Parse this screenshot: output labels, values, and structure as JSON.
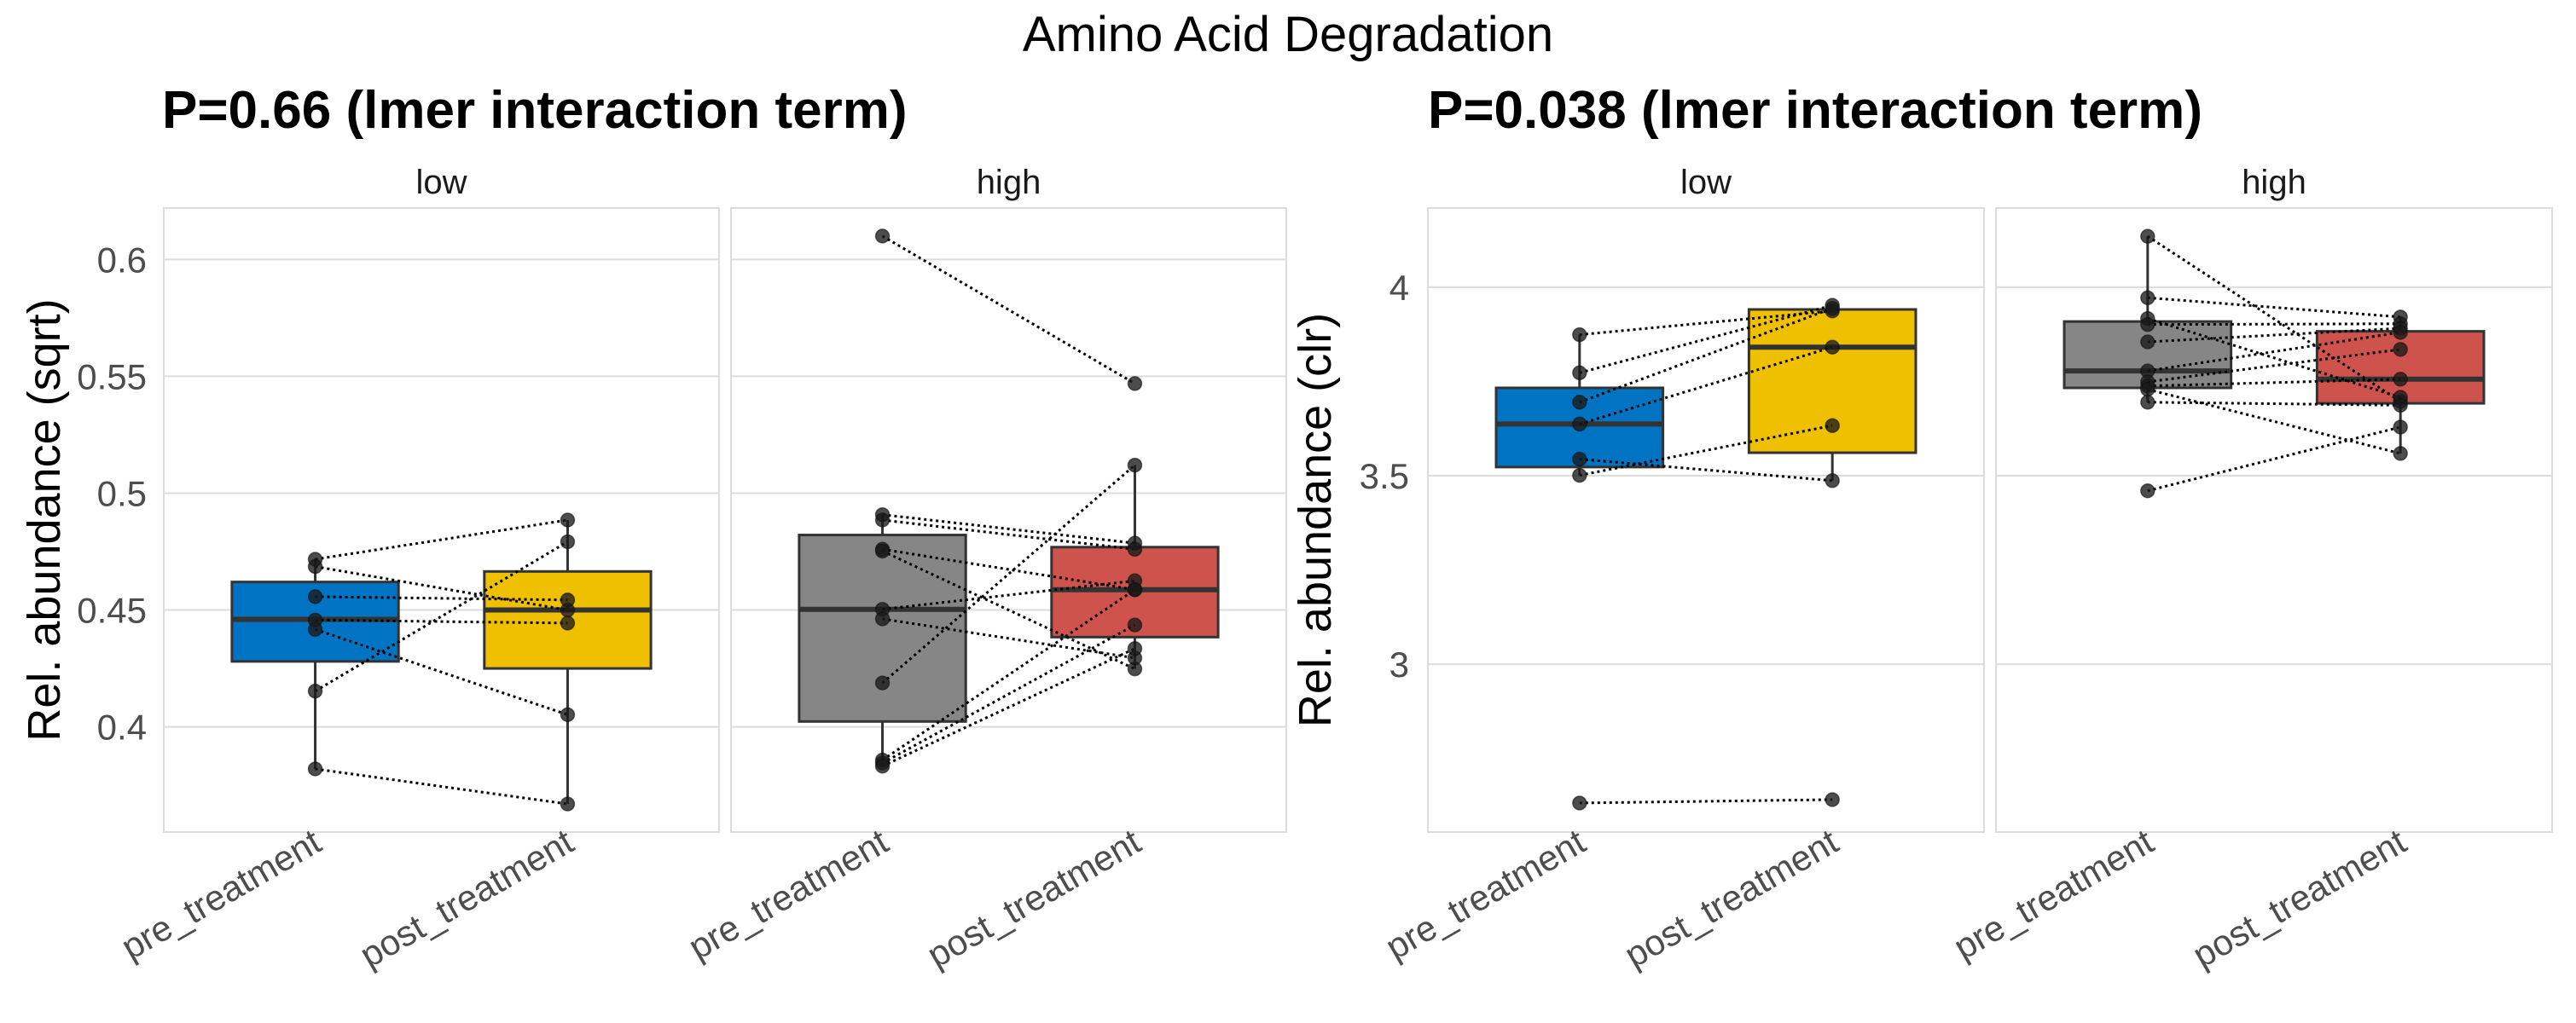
{
  "title": "Amino Acid Degradation",
  "chart_data": [
    {
      "type": "box",
      "subtitle": "P=0.66 (lmer interaction term)",
      "ylabel": "Rel. abundance (sqrt)",
      "ylim": [
        0.355,
        0.622
      ],
      "yticks": [
        0.4,
        0.45,
        0.5,
        0.55,
        0.6
      ],
      "ytick_labels": [
        "0.4",
        "0.45",
        "0.5",
        "0.55",
        "0.6"
      ],
      "grid": true,
      "categories": [
        "pre_treatment",
        "post_treatment"
      ],
      "facets": [
        {
          "label": "low",
          "colors": [
            "#0073C2",
            "#EFC000"
          ],
          "boxes": [
            {
              "q1": 0.428,
              "median": 0.446,
              "q3": 0.462,
              "whisker_low": 0.382,
              "whisker_high": 0.472
            },
            {
              "q1": 0.425,
              "median": 0.45,
              "q3": 0.4665,
              "whisker_low": 0.367,
              "whisker_high": 0.4885
            }
          ],
          "pairs": [
            [
              0.4717,
              0.4885
            ],
            [
              0.4686,
              0.45
            ],
            [
              0.4557,
              0.4543
            ],
            [
              0.4457,
              0.4444
            ],
            [
              0.4417,
              0.4052
            ],
            [
              0.4153,
              0.4792
            ],
            [
              0.382,
              0.367
            ]
          ]
        },
        {
          "label": "high",
          "colors": [
            "#868686",
            "#CD534C"
          ],
          "boxes": [
            {
              "q1": 0.4023,
              "median": 0.4503,
              "q3": 0.4821,
              "whisker_low": 0.3832,
              "whisker_high": 0.4908
            },
            {
              "q1": 0.4384,
              "median": 0.4587,
              "q3": 0.4769,
              "whisker_low": 0.4248,
              "whisker_high": 0.512
            }
          ],
          "pairs": [
            [
              0.61,
              0.5469
            ],
            [
              0.4908,
              0.4786
            ],
            [
              0.4885,
              0.476
            ],
            [
              0.476,
              0.4587
            ],
            [
              0.4752,
              0.4248
            ],
            [
              0.4503,
              0.4625
            ],
            [
              0.4462,
              0.4295
            ],
            [
              0.4188,
              0.512
            ],
            [
              0.3858,
              0.4587
            ],
            [
              0.3845,
              0.4436
            ],
            [
              0.3832,
              0.4335
            ]
          ]
        }
      ]
    },
    {
      "type": "box",
      "subtitle": "P=0.038 (lmer interaction term)",
      "ylabel": "Rel. abundance (clr)",
      "ylim": [
        2.555,
        4.21
      ],
      "yticks": [
        3,
        3.5,
        4
      ],
      "ytick_labels": [
        "3",
        "3.5",
        "4"
      ],
      "grid": true,
      "categories": [
        "pre_treatment",
        "post_treatment"
      ],
      "facets": [
        {
          "label": "low",
          "colors": [
            "#0073C2",
            "#EFC000"
          ],
          "boxes": [
            {
              "q1": 3.523,
              "median": 3.637,
              "q3": 3.733,
              "whisker_low": 3.501,
              "whisker_high": 3.874
            },
            {
              "q1": 3.561,
              "median": 3.841,
              "q3": 3.941,
              "whisker_low": 3.487,
              "whisker_high": 3.952
            }
          ],
          "pairs": [
            [
              3.874,
              3.937
            ],
            [
              3.773,
              3.952
            ],
            [
              3.695,
              3.944
            ],
            [
              3.637,
              3.841
            ],
            [
              3.544,
              3.487
            ],
            [
              3.501,
              3.633
            ],
            [
              2.632,
              2.641
            ]
          ]
        },
        {
          "label": "high",
          "colors": [
            "#868686",
            "#CD534C"
          ],
          "boxes": [
            {
              "q1": 3.733,
              "median": 3.778,
              "q3": 3.909,
              "whisker_low": 3.695,
              "whisker_high": 4.135
            },
            {
              "q1": 3.692,
              "median": 3.756,
              "q3": 3.883,
              "whisker_low": 3.559,
              "whisker_high": 3.921
            }
          ],
          "pairs": [
            [
              4.135,
              3.697
            ],
            [
              3.972,
              3.921
            ],
            [
              3.917,
              3.708
            ],
            [
              3.901,
              3.903
            ],
            [
              3.855,
              3.891
            ],
            [
              3.778,
              3.88
            ],
            [
              3.749,
              3.835
            ],
            [
              3.738,
              3.756
            ],
            [
              3.729,
              3.559
            ],
            [
              3.695,
              3.687
            ],
            [
              3.46,
              3.629
            ]
          ]
        }
      ]
    }
  ]
}
